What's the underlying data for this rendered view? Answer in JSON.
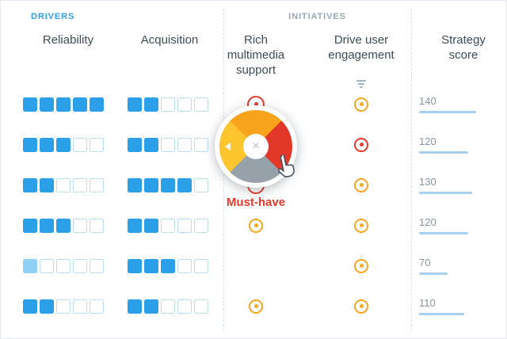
{
  "header": {
    "drivers": "DRIVERS",
    "initiatives": "INITIATIVES"
  },
  "columns": {
    "reliability": "Reliability",
    "acquisition": "Acquisition",
    "rich_multimedia": "Rich multimedia support",
    "engagement": "Drive user engagement",
    "strategy_score": "Strategy score"
  },
  "wheel": {
    "label": "Must-have",
    "close_glyph": "×",
    "segments": {
      "top": "#f7a41c",
      "right": "#e2382a",
      "bottom": "#97a1aa",
      "left": "#fdc62f"
    }
  },
  "colors": {
    "filled_square": "#2b9fe8",
    "light_square": "#8fd0f5",
    "empty_square_border": "#bcdcf2",
    "orange_ring": "#f5a623",
    "red_ring": "#e8392b",
    "score_bar": "#a9cfee",
    "drivers_label": "#2e9fe6",
    "initiatives_label": "#9aa8b4",
    "must_have": "#e8392b"
  },
  "score_max": 140,
  "rows": [
    {
      "reliability": 5,
      "acquisition": 2,
      "rich": "red-peek",
      "engagement": "orange",
      "score": "140"
    },
    {
      "reliability": 3,
      "acquisition": 2,
      "rich": "red",
      "engagement": "red",
      "score": "120"
    },
    {
      "reliability": 2,
      "acquisition": 4,
      "rich": "red-peek",
      "engagement": "orange",
      "score": "130"
    },
    {
      "reliability": 3,
      "acquisition": 2,
      "rich": "orange",
      "engagement": "orange",
      "score": "120"
    },
    {
      "reliability": 1,
      "acquisition": 3,
      "rich": "none",
      "engagement": "orange",
      "score": "70",
      "reliability_light": true
    },
    {
      "reliability": 2,
      "acquisition": 2,
      "rich": "orange",
      "engagement": "orange",
      "score": "110"
    }
  ]
}
